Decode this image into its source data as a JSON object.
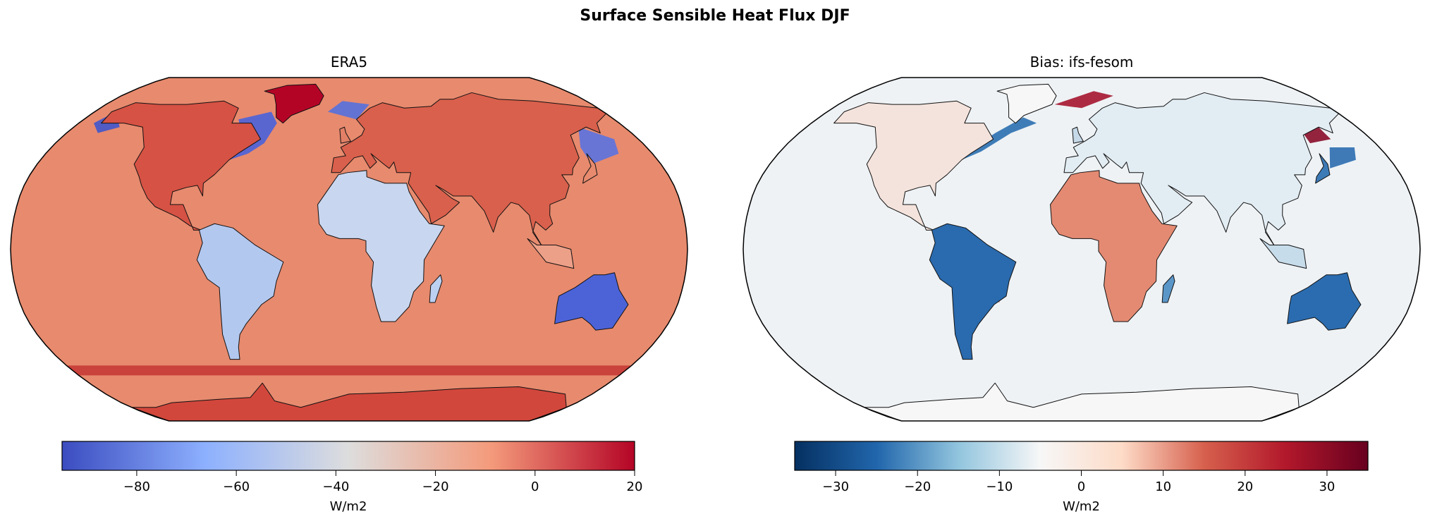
{
  "chart_data": {
    "title": "Surface Sensible Heat Flux DJF",
    "type": "heatmap",
    "panels": [
      {
        "title": "ERA5",
        "projection": "robinson",
        "colormap": "coolwarm",
        "colorbar": {
          "label": "W/m2",
          "range": [
            -95,
            20
          ],
          "ticks": [
            "−80",
            "−60",
            "−40",
            "−20",
            "0",
            "20"
          ],
          "tick_values": [
            -80,
            -60,
            -40,
            -20,
            0,
            20
          ],
          "orientation": "horizontal",
          "placement": "bottom"
        }
      },
      {
        "title": "Bias: ifs-fesom",
        "projection": "robinson",
        "colormap": "RdBu_r",
        "colorbar": {
          "label": "W/m2",
          "range": [
            -35,
            35
          ],
          "ticks": [
            "−30",
            "−20",
            "−10",
            "0",
            "10",
            "20",
            "30"
          ],
          "tick_values": [
            -30,
            -20,
            -10,
            0,
            10,
            20,
            30
          ],
          "orientation": "horizontal",
          "placement": "bottom"
        }
      }
    ]
  },
  "colors": {
    "coolwarm": [
      "#3b4cc0",
      "#8db0fe",
      "#dddddd",
      "#f49a7b",
      "#b40426"
    ],
    "rdbu_r": [
      "#053061",
      "#2166ac",
      "#92c5de",
      "#f7f7f7",
      "#fddbc7",
      "#d6604d",
      "#b2182b",
      "#67001f"
    ]
  }
}
